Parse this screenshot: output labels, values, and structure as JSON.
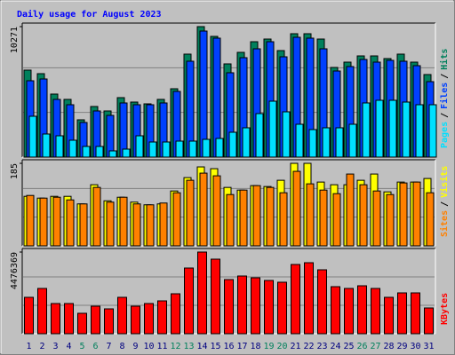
{
  "chart_data": [
    {
      "type": "bar",
      "title": "Daily usage for August 2023",
      "ylim": [
        0,
        10550
      ],
      "yticks": [
        10271
      ],
      "legend_separator": "/",
      "series": [
        {
          "name": "Hits",
          "color": "#00805c",
          "values": [
            6847,
            6568,
            4961,
            4542,
            2935,
            3983,
            3633,
            4681,
            4332,
            4192,
            4542,
            5380,
            8105,
            10271,
            9503,
            7337,
            8245,
            9083,
            9293,
            8385,
            9712,
            9712,
            9293,
            7057,
            7476,
            7965,
            7965,
            7756,
            8105,
            7476,
            6498
          ]
        },
        {
          "name": "Files",
          "color": "#0040ff",
          "values": [
            6009,
            6149,
            4542,
            4122,
            2725,
            3633,
            3284,
            4262,
            4122,
            4122,
            4262,
            5170,
            7546,
            9922,
            9363,
            6638,
            7825,
            8524,
            9083,
            7895,
            9432,
            9363,
            8524,
            6777,
            7127,
            7686,
            7476,
            7616,
            7546,
            7197,
            5939
          ]
        },
        {
          "name": "Pages",
          "color": "#00e0ff",
          "values": [
            3214,
            1817,
            1677,
            1328,
            838,
            838,
            489,
            629,
            1677,
            1188,
            1188,
            1258,
            1258,
            1397,
            1467,
            1956,
            2306,
            3424,
            4402,
            3563,
            2585,
            2166,
            2306,
            2306,
            2585,
            4262,
            4472,
            4472,
            4332,
            4122,
            4122
          ]
        }
      ]
    },
    {
      "type": "bar",
      "ylim": [
        0,
        193
      ],
      "yticks": [
        185
      ],
      "legend_separator": "/",
      "series": [
        {
          "name": "Visits",
          "color": "#ffff00",
          "values": [
            111,
            107,
            111,
            111,
            94,
            137,
            101,
            109,
            98,
            92,
            94,
            123,
            153,
            177,
            173,
            131,
            125,
            135,
            133,
            147,
            185,
            185,
            143,
            137,
            137,
            147,
            161,
            121,
            143,
            143,
            151
          ]
        },
        {
          "name": "Sites",
          "color": "#ff8000",
          "values": [
            113,
            107,
            109,
            103,
            94,
            131,
            98,
            109,
            94,
            92,
            96,
            119,
            147,
            163,
            157,
            115,
            125,
            135,
            131,
            119,
            167,
            139,
            125,
            117,
            161,
            137,
            123,
            115,
            141,
            143,
            119
          ]
        }
      ]
    },
    {
      "type": "bar",
      "ylim": [
        0,
        4671000
      ],
      "yticks": [
        4476369
      ],
      "categories": [
        "1",
        "2",
        "3",
        "4",
        "5",
        "6",
        "7",
        "8",
        "9",
        "10",
        "11",
        "12",
        "13",
        "14",
        "15",
        "16",
        "17",
        "18",
        "19",
        "20",
        "21",
        "22",
        "23",
        "24",
        "25",
        "26",
        "27",
        "28",
        "29",
        "30",
        "31"
      ],
      "category_colors": [
        "#000080",
        "#000080",
        "#000080",
        "#000080",
        "#00805c",
        "#00805c",
        "#000080",
        "#000080",
        "#000080",
        "#000080",
        "#000080",
        "#00805c",
        "#00805c",
        "#000080",
        "#000080",
        "#000080",
        "#000080",
        "#000080",
        "#00805c",
        "#00805c",
        "#000080",
        "#000080",
        "#000080",
        "#000080",
        "#000080",
        "#00805c",
        "#00805c",
        "#000080",
        "#000080",
        "#000080",
        "#000080"
      ],
      "series": [
        {
          "name": "KBytes",
          "color": "#ff0000",
          "values": [
            1994896,
            2481456,
            1654304,
            1654304,
            1119088,
            1508336,
            1362368,
            1994896,
            1508336,
            1654304,
            1800272,
            2189520,
            3600544,
            4476369,
            4087104,
            2968016,
            3162640,
            3065328,
            2919360,
            2822048,
            3795168,
            3892480,
            3503232,
            2578768,
            2481456,
            2627424,
            2481456,
            1994896,
            2238176,
            2238176,
            1411024
          ]
        }
      ]
    }
  ]
}
